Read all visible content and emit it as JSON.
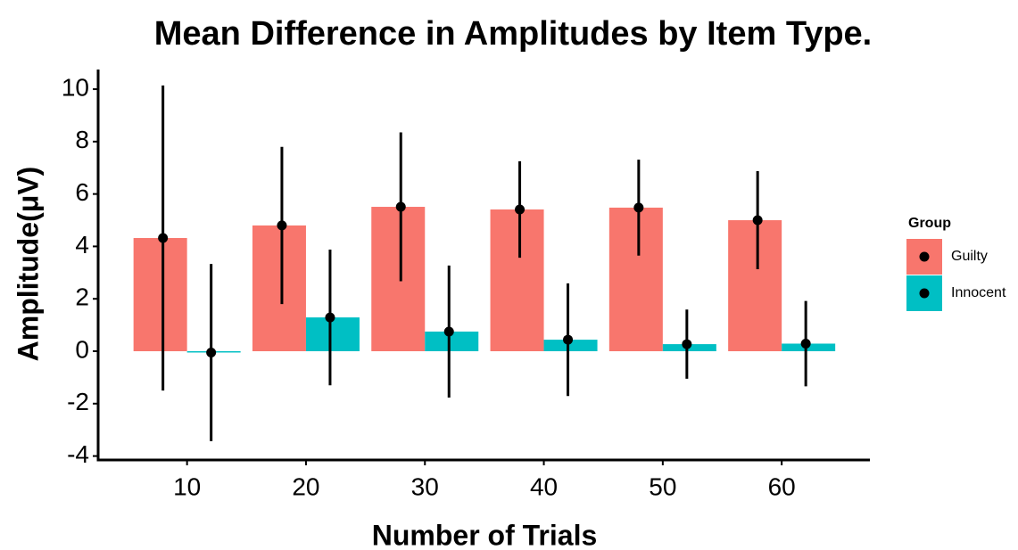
{
  "chart_data": {
    "type": "bar",
    "title": "Mean Difference in Amplitudes by Item Type.",
    "x_label": "Number of Trials",
    "y_label": "Amplitude(μV)",
    "legend_title": "Group",
    "categories": [
      "10",
      "20",
      "30",
      "40",
      "50",
      "60"
    ],
    "series": [
      {
        "name": "Guilty",
        "color": "#F8766D",
        "values": [
          4.32,
          4.8,
          5.51,
          5.41,
          5.48,
          5.0
        ],
        "errors": [
          5.82,
          3.0,
          2.84,
          1.84,
          1.83,
          1.87
        ]
      },
      {
        "name": "Innocent",
        "color": "#00BFC4",
        "values": [
          -0.05,
          1.29,
          0.75,
          0.44,
          0.27,
          0.29
        ],
        "errors": [
          3.38,
          2.59,
          2.52,
          2.15,
          1.32,
          1.63
        ]
      }
    ],
    "ylim": [
      -4.15,
      10.75
    ],
    "yticks": [
      -4,
      -2,
      0,
      2,
      4,
      6,
      8,
      10
    ],
    "grid": false,
    "legend_position": "right"
  }
}
